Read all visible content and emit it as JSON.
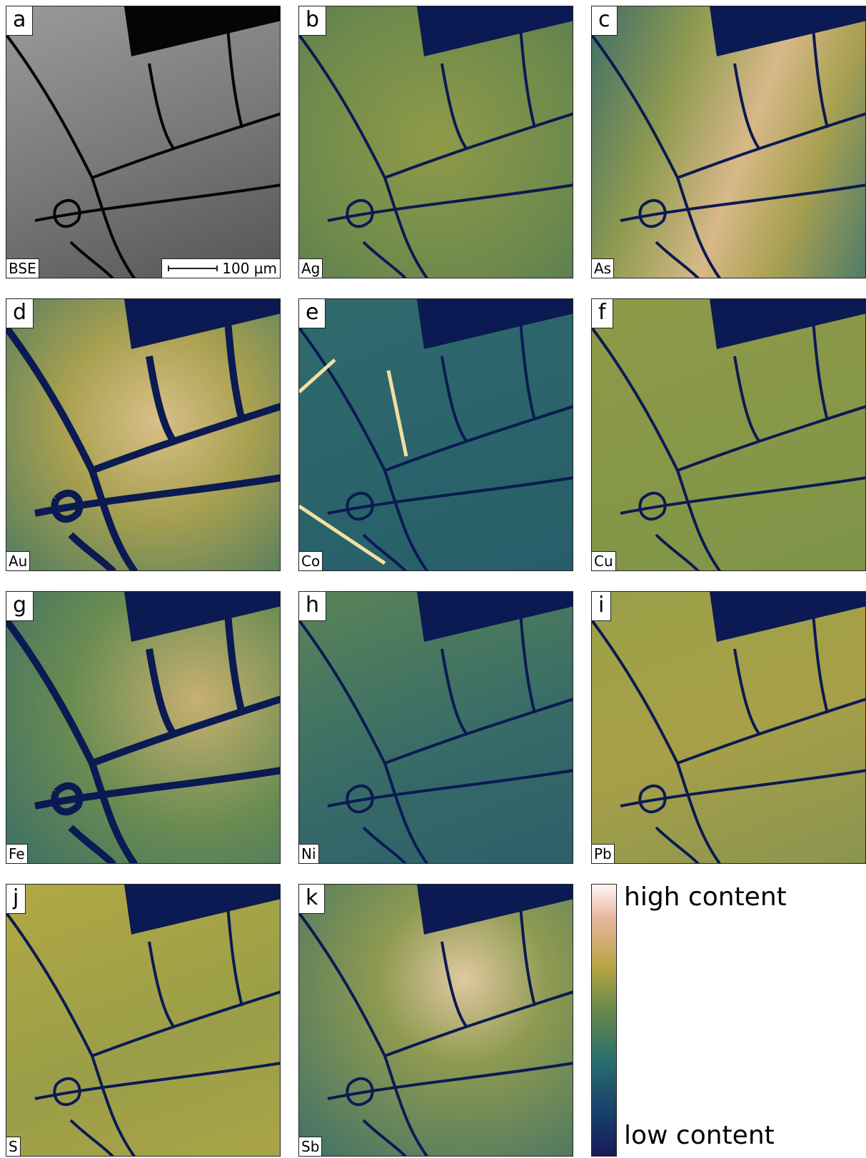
{
  "panels": [
    {
      "letter": "a",
      "element": "BSE"
    },
    {
      "letter": "b",
      "element": "Ag"
    },
    {
      "letter": "c",
      "element": "As"
    },
    {
      "letter": "d",
      "element": "Au"
    },
    {
      "letter": "e",
      "element": "Co"
    },
    {
      "letter": "f",
      "element": "Cu"
    },
    {
      "letter": "g",
      "element": "Fe"
    },
    {
      "letter": "h",
      "element": "Ni"
    },
    {
      "letter": "i",
      "element": "Pb"
    },
    {
      "letter": "j",
      "element": "S"
    },
    {
      "letter": "k",
      "element": "Sb"
    }
  ],
  "scale_bar": "100 µm",
  "colorbar": {
    "high": "high content",
    "low": "low content"
  }
}
